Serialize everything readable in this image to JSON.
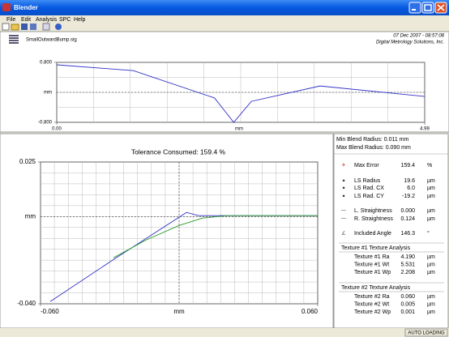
{
  "window": {
    "title": "Blender"
  },
  "menu": [
    "File",
    "Edit",
    "Analysis",
    "SPC",
    "Help"
  ],
  "header": {
    "file": "SmallOutwardBump.sig",
    "date": "07 Dec 2007 - 08:57:08",
    "company": "Digital Metrology Solutions, Inc."
  },
  "profile_chart": {
    "type": "line",
    "x_label": "mm",
    "y_label": "mm",
    "x": [
      0,
      1.04,
      2.14,
      2.4,
      2.64,
      3.57,
      4.99
    ],
    "series": [
      {
        "color": "#3030c8",
        "values": [
          0.735,
          0.58,
          -0.15,
          -0.8,
          -0.24,
          0.17,
          -0.11
        ]
      }
    ],
    "xlim": [
      0,
      4.99
    ],
    "ylim": [
      -0.8,
      0.8
    ],
    "xticks": [
      {
        "value": 0,
        "label": "0.00"
      },
      4.99
    ],
    "yticks": [
      {
        "value": -0.8,
        "label": "-0.800"
      },
      {
        "value": 0.8,
        "label": "0.800"
      }
    ]
  },
  "blend_chart": {
    "type": "line",
    "title": "Tolerance Consumed: 159.4 %",
    "x_label": "mm",
    "y_label": "mm",
    "series": [
      {
        "color": "#3030c8",
        "x": [
          -0.0558,
          -0.0284,
          0.0032,
          0.0084,
          0.06
        ],
        "values": [
          -0.039,
          -0.0197,
          0.0019,
          0.0004,
          0.0004
        ]
      },
      {
        "color": "#2a9a2a",
        "x": [
          -0.0284,
          -0.0144,
          0,
          0.0102,
          0.0207,
          0.06
        ],
        "values": [
          -0.0189,
          -0.0108,
          -0.0041,
          -0.0007,
          0.0004,
          0.0004
        ]
      }
    ],
    "xlim": [
      -0.06,
      0.06
    ],
    "ylim": [
      -0.04,
      0.025
    ],
    "xticks": [
      {
        "value": -0.06,
        "label": "-0.060"
      },
      {
        "value": 0.06,
        "label": "0.060"
      }
    ],
    "yticks": [
      {
        "value": -0.04,
        "label": "-0.040"
      },
      0.025
    ]
  },
  "results": {
    "blend": [
      "Min Blend Radius: 0.011 mm",
      "Max Blend Radius: 0.090 mm"
    ],
    "groups": [
      [
        {
          "label": "Max Error",
          "value": "159.4",
          "unit": "%"
        }
      ],
      [
        {
          "label": "LS Radius",
          "value": "19.6",
          "unit": "µm"
        },
        {
          "label": "LS Rad. CX",
          "value": "6.0",
          "unit": "µm"
        },
        {
          "label": "LS Rad. CY",
          "value": "-19.2",
          "unit": "µm"
        }
      ],
      [
        {
          "label": "L. Straightness",
          "value": "0.000",
          "unit": "µm"
        },
        {
          "label": "R. Straightness",
          "value": "0.124",
          "unit": "µm"
        }
      ],
      [
        {
          "label": "Included Angle",
          "value": "146.3",
          "unit": "°"
        }
      ]
    ],
    "textures": [
      {
        "title": "Texture #1 Texture Analysis",
        "rows": [
          {
            "label": "Texture #1 Ra",
            "value": "4.190",
            "unit": "µm"
          },
          {
            "label": "Texture #1 Wt",
            "value": "5.531",
            "unit": "µm"
          },
          {
            "label": "Texture #1 Wp",
            "value": "2.208",
            "unit": "µm"
          }
        ]
      },
      {
        "title": "Texture #2 Texture Analysis",
        "rows": [
          {
            "label": "Texture #2 Ra",
            "value": "0.060",
            "unit": "µm"
          },
          {
            "label": "Texture #2 Wt",
            "value": "0.005",
            "unit": "µm"
          },
          {
            "label": "Texture #2 Wp",
            "value": "0.001",
            "unit": "µm"
          }
        ]
      }
    ]
  },
  "status": "AUTO LOADING"
}
